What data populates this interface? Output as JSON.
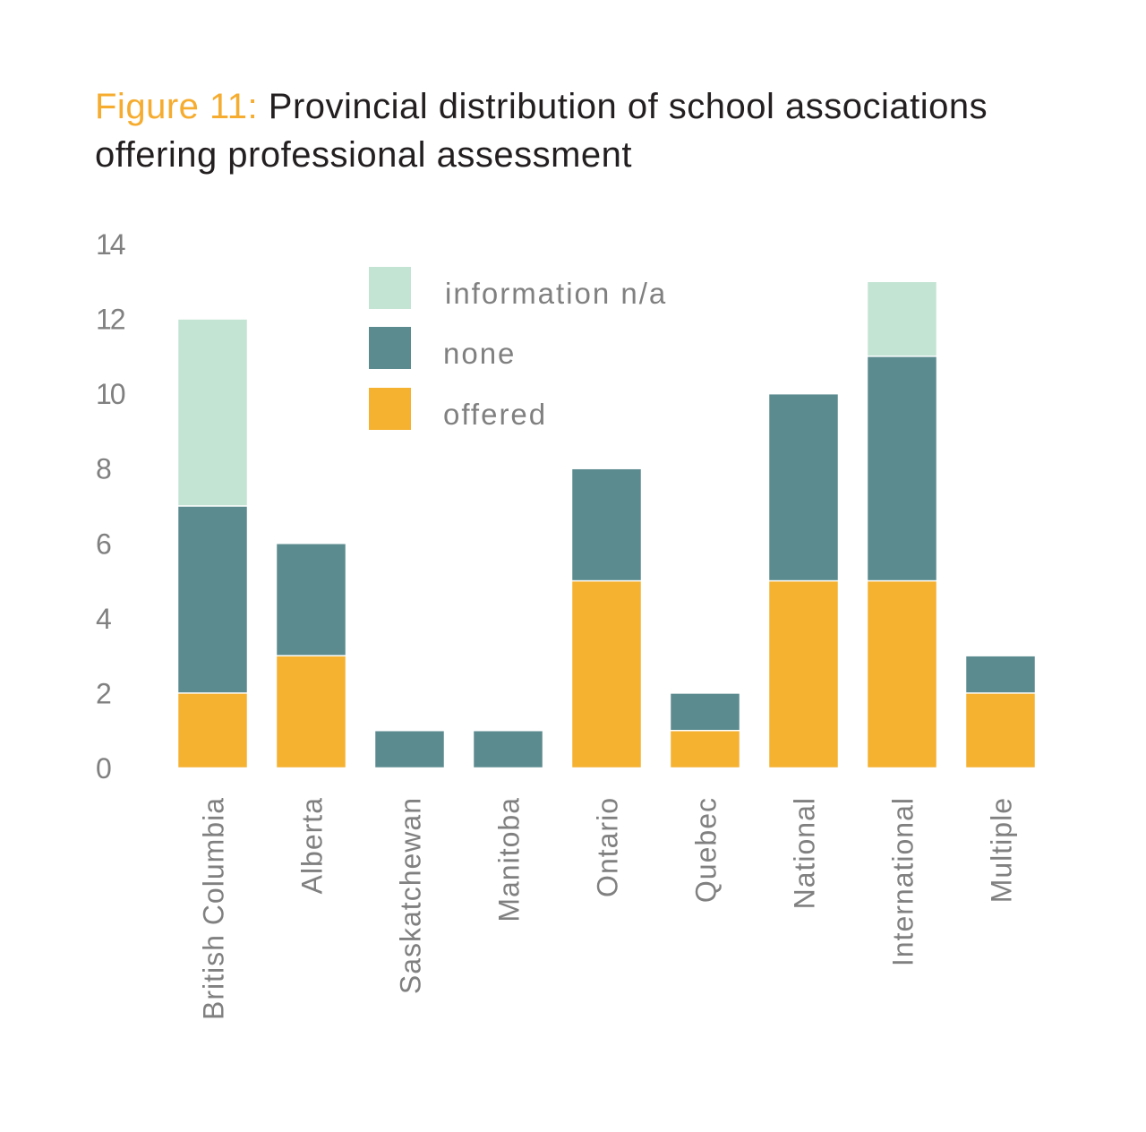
{
  "figure": {
    "label": "Figure 11:",
    "title": "Provincial distribution of school associations offering professional assessment"
  },
  "colors": {
    "information_na": "#c3e4d3",
    "none": "#5b8b8f",
    "offered": "#f5b130",
    "title_accent": "#f5ac2f",
    "text": "#808080"
  },
  "chart_data": {
    "type": "bar",
    "stacked": true,
    "title": "Figure 11: Provincial distribution of school associations offering professional assessment",
    "xlabel": "",
    "ylabel": "",
    "ylim": [
      0,
      14
    ],
    "yticks": [
      0,
      2,
      4,
      6,
      8,
      10,
      12,
      14
    ],
    "grid": false,
    "legend_position": "top-center",
    "categories": [
      "British Columbia",
      "Alberta",
      "Saskatchewan",
      "Manitoba",
      "Ontario",
      "Quebec",
      "National",
      "International",
      "Multiple"
    ],
    "series": [
      {
        "name": "offered",
        "color": "#f5b130",
        "values": [
          2,
          3,
          0,
          0,
          5,
          1,
          5,
          5,
          2
        ]
      },
      {
        "name": "none",
        "color": "#5b8b8f",
        "values": [
          5,
          3,
          1,
          1,
          3,
          1,
          5,
          6,
          1
        ]
      },
      {
        "name": "information n/a",
        "color": "#c3e4d3",
        "values": [
          5,
          0,
          0,
          0,
          0,
          0,
          0,
          2,
          0
        ]
      }
    ],
    "legend_order": [
      "information n/a",
      "none",
      "offered"
    ]
  }
}
